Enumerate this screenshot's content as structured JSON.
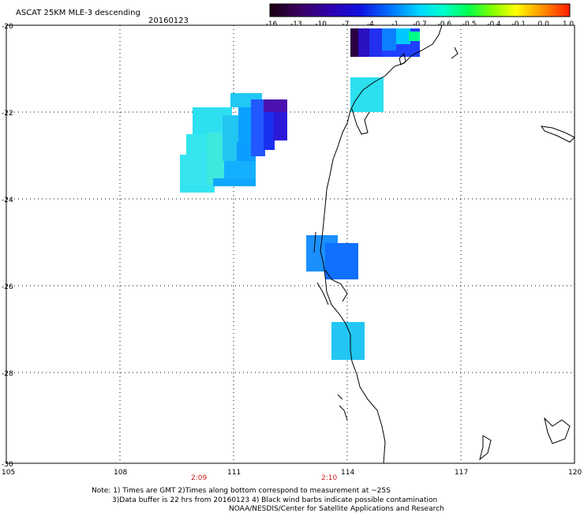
{
  "header": {
    "title": "ASCAT 25KM MLE-3 descending",
    "date": "20160123"
  },
  "colorbar": {
    "labels": [
      "-16",
      "-13",
      "-10",
      "-7",
      "-4",
      "-1",
      "-0.7",
      "-0.6",
      "-0.5",
      "-0.4",
      "-0.1",
      "0.0",
      "1.0"
    ],
    "colors": [
      "#1a0010",
      "#3a0060",
      "#3a00a0",
      "#2a10d0",
      "#0040ff",
      "#0090ff",
      "#00d8ff",
      "#00ffcc",
      "#00ff66",
      "#60ff00",
      "#ffff00",
      "#ff9000",
      "#ff2000"
    ]
  },
  "axes": {
    "lat_labels": [
      "-20",
      "-22",
      "-24",
      "-26",
      "-28",
      "-30"
    ],
    "lon_labels": [
      "105",
      "108",
      "111",
      "114",
      "117",
      "120"
    ]
  },
  "times": [
    "2:09",
    "2:10"
  ],
  "footer": {
    "line1": "Note: 1) Times are GMT 2)Times along bottom correspond to measurement at ~25S",
    "line2": "3)Data buffer is 22 hrs from 20160123 4) Black wind barbs indicate possible contamination",
    "line3": "NOAA/NESDIS/Center for Satellite Applications and Research"
  }
}
